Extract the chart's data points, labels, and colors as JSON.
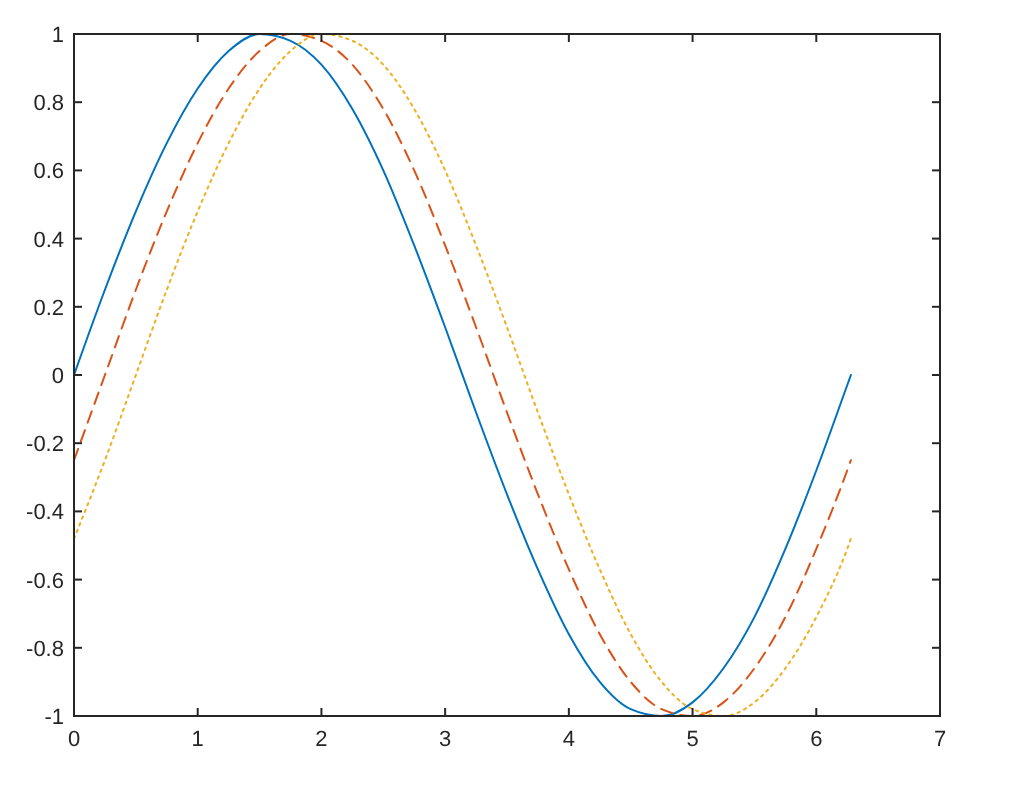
{
  "chart_data": {
    "type": "line",
    "x": [
      0,
      0.25,
      0.5,
      0.75,
      1,
      1.25,
      1.5,
      1.75,
      2,
      2.25,
      2.5,
      2.75,
      3,
      3.25,
      3.5,
      3.75,
      4,
      4.25,
      4.5,
      4.75,
      5,
      5.25,
      5.5,
      5.75,
      6,
      6.25,
      6.28
    ],
    "series": [
      {
        "color": "#0072bd",
        "line_style": "solid",
        "values": [
          0,
          0.25,
          0.48,
          0.68,
          0.84,
          0.95,
          1.0,
          0.98,
          0.91,
          0.78,
          0.6,
          0.38,
          0.14,
          -0.11,
          -0.35,
          -0.57,
          -0.76,
          -0.9,
          -0.98,
          -1.0,
          -0.96,
          -0.86,
          -0.71,
          -0.51,
          -0.28,
          -0.03,
          0
        ]
      },
      {
        "color": "#d95319",
        "line_style": "dashed",
        "values": [
          -0.25,
          0,
          0.25,
          0.48,
          0.68,
          0.84,
          0.95,
          1.0,
          0.98,
          0.91,
          0.78,
          0.6,
          0.38,
          0.14,
          -0.11,
          -0.35,
          -0.57,
          -0.76,
          -0.9,
          -0.98,
          -1.0,
          -0.96,
          -0.86,
          -0.71,
          -0.51,
          -0.28,
          -0.25
        ]
      },
      {
        "color": "#edb120",
        "line_style": "dotted",
        "values": [
          -0.48,
          -0.25,
          0,
          0.25,
          0.48,
          0.68,
          0.84,
          0.95,
          1.0,
          0.98,
          0.91,
          0.78,
          0.6,
          0.38,
          0.14,
          -0.11,
          -0.35,
          -0.57,
          -0.76,
          -0.9,
          -0.98,
          -1.0,
          -0.96,
          -0.86,
          -0.71,
          -0.51,
          -0.48
        ]
      }
    ],
    "xlim": [
      0,
      7
    ],
    "xticks": [
      0,
      1,
      2,
      3,
      4,
      5,
      6,
      7
    ],
    "ylim": [
      -1,
      1
    ],
    "yticks": [
      -1,
      -0.8,
      -0.6,
      -0.4,
      -0.2,
      0,
      0.2,
      0.4,
      0.6,
      0.8,
      1
    ],
    "grid": false
  }
}
